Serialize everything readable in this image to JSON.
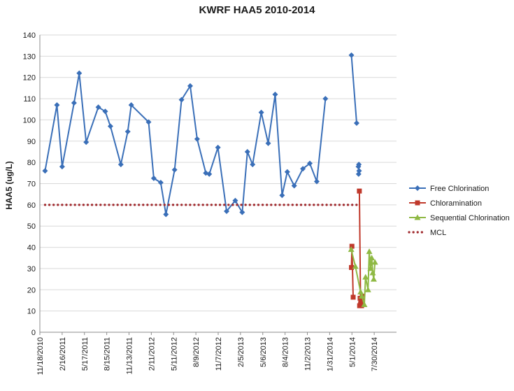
{
  "chart_data": {
    "type": "line",
    "title": "KWRF HAA5 2010-2014",
    "xlabel": "",
    "ylabel": "HAA5 (ug/L)",
    "ylim": [
      0,
      140
    ],
    "yticks": [
      0,
      10,
      20,
      30,
      40,
      50,
      60,
      70,
      80,
      90,
      100,
      110,
      120,
      130,
      140
    ],
    "xlim": [
      "2010-11-18",
      "2014-10-28"
    ],
    "xtick_labels": [
      "11/18/2010",
      "2/16/2011",
      "5/17/2011",
      "8/15/2011",
      "11/13/2011",
      "2/11/2012",
      "5/11/2012",
      "8/9/2012",
      "11/7/2012",
      "2/5/2013",
      "5/6/2013",
      "8/4/2013",
      "11/2/2013",
      "1/31/2014",
      "5/1/2014",
      "7/30/2014"
    ],
    "xtick_dates": [
      "2010-11-18",
      "2011-02-16",
      "2011-05-17",
      "2011-08-15",
      "2011-11-13",
      "2012-02-11",
      "2012-05-11",
      "2012-08-09",
      "2012-11-07",
      "2013-02-05",
      "2013-05-06",
      "2013-08-04",
      "2013-11-02",
      "2014-01-31",
      "2014-05-01",
      "2014-07-30"
    ],
    "grid": "horizontal",
    "legend_position": "right",
    "series": [
      {
        "name": "Free Chlorination",
        "color": "#3a6fb8",
        "marker": "diamond",
        "points": [
          [
            "2010-12-09",
            76
          ],
          [
            "2011-01-26",
            107
          ],
          [
            "2011-02-16",
            78
          ],
          [
            "2011-04-05",
            108
          ],
          [
            "2011-04-26",
            122
          ],
          [
            "2011-05-24",
            89.5
          ],
          [
            "2011-07-12",
            106
          ],
          [
            "2011-08-09",
            104
          ],
          [
            "2011-08-30",
            97
          ],
          [
            "2011-10-11",
            79
          ],
          [
            "2011-11-08",
            94.5
          ],
          [
            "2011-11-22",
            107
          ],
          [
            "2012-01-31",
            99
          ],
          [
            "2012-02-21",
            72.5
          ],
          [
            "2012-03-20",
            70.5
          ],
          [
            "2012-04-10",
            55.5
          ],
          [
            "2012-05-15",
            76.5
          ],
          [
            "2012-06-12",
            109.5
          ],
          [
            "2012-07-17",
            116
          ],
          [
            "2012-08-14",
            91
          ],
          [
            "2012-09-18",
            75
          ],
          [
            "2012-10-02",
            74.5
          ],
          [
            "2012-11-06",
            87
          ],
          [
            "2012-12-11",
            57
          ],
          [
            "2013-01-15",
            62
          ],
          [
            "2013-02-12",
            56.5
          ],
          [
            "2013-03-05",
            85
          ],
          [
            "2013-03-26",
            79
          ],
          [
            "2013-04-30",
            103.5
          ],
          [
            "2013-05-28",
            89
          ],
          [
            "2013-06-25",
            112
          ],
          [
            "2013-07-23",
            64.5
          ],
          [
            "2013-08-13",
            75.5
          ],
          [
            "2013-09-10",
            69
          ],
          [
            "2013-10-15",
            77
          ],
          [
            "2013-11-12",
            79.5
          ],
          [
            "2013-12-10",
            71
          ],
          [
            "2014-01-14",
            110
          ],
          null,
          [
            "2014-04-29",
            130.5
          ],
          [
            "2014-05-20",
            98.5
          ],
          null,
          [
            "2014-05-29",
            79
          ],
          [
            "2014-05-27",
            78
          ],
          [
            "2014-05-30",
            76
          ],
          [
            "2014-05-28",
            74.5
          ]
        ]
      },
      {
        "name": "Chloramination",
        "color": "#c0392b",
        "marker": "square",
        "points": [
          [
            "2014-04-29",
            30.5
          ],
          [
            "2014-05-01",
            40.5
          ],
          [
            "2014-05-06",
            16.5
          ],
          null,
          [
            "2014-05-31",
            66.5
          ],
          [
            "2014-06-05",
            13.5
          ],
          [
            "2014-06-03",
            16
          ],
          [
            "2014-06-01",
            12.5
          ],
          [
            "2014-06-07",
            14
          ],
          [
            "2014-06-09",
            12.5
          ],
          [
            "2014-06-10",
            15
          ],
          [
            "2014-06-12",
            17
          ]
        ]
      },
      {
        "name": "Sequential Chlorination",
        "color": "#8fb944",
        "marker": "triangle",
        "points": [
          [
            "2014-04-28",
            39
          ],
          [
            "2014-05-15",
            31
          ],
          [
            "2014-06-05",
            19
          ],
          [
            "2014-06-10",
            17
          ],
          [
            "2014-06-20",
            13
          ],
          [
            "2014-06-25",
            26
          ],
          [
            "2014-07-05",
            20
          ],
          [
            "2014-07-10",
            38
          ],
          [
            "2014-07-15",
            30
          ],
          [
            "2014-07-20",
            35
          ],
          [
            "2014-07-24",
            28
          ],
          [
            "2014-07-28",
            25
          ],
          [
            "2014-08-02",
            33
          ]
        ]
      },
      {
        "name": "MCL",
        "color": "#a0292d",
        "style": "dotted",
        "value": 60,
        "points": [
          [
            "2010-12-09",
            60
          ],
          [
            "2014-06-01",
            60
          ]
        ]
      }
    ]
  }
}
